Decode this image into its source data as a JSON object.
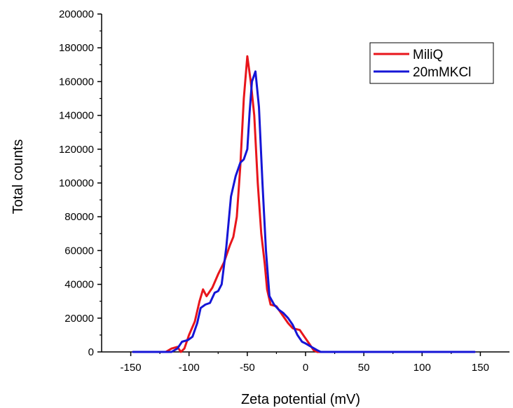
{
  "chart_data": {
    "type": "line",
    "title": "",
    "xlabel": "Zeta potential (mV)",
    "ylabel": "Total counts",
    "xlim": [
      -175,
      175
    ],
    "ylim": [
      0,
      200000
    ],
    "x_ticks": [
      -150,
      -100,
      -50,
      0,
      50,
      100,
      150
    ],
    "y_ticks": [
      0,
      20000,
      40000,
      60000,
      80000,
      100000,
      120000,
      140000,
      160000,
      180000,
      200000
    ],
    "grid": false,
    "legend_position": "top-right",
    "series": [
      {
        "name": "MiliQ",
        "color": "#e8151b",
        "points": [
          [
            -148,
            0
          ],
          [
            -120,
            0
          ],
          [
            -115,
            2000
          ],
          [
            -110,
            3000
          ],
          [
            -107,
            0
          ],
          [
            -104,
            2000
          ],
          [
            -100,
            10000
          ],
          [
            -95,
            18000
          ],
          [
            -91,
            30000
          ],
          [
            -88,
            37000
          ],
          [
            -85,
            33000
          ],
          [
            -80,
            38000
          ],
          [
            -75,
            46000
          ],
          [
            -70,
            53000
          ],
          [
            -65,
            63000
          ],
          [
            -62,
            68000
          ],
          [
            -59,
            80000
          ],
          [
            -56,
            110000
          ],
          [
            -53,
            150000
          ],
          [
            -50,
            175000
          ],
          [
            -47,
            160000
          ],
          [
            -44,
            140000
          ],
          [
            -41,
            100000
          ],
          [
            -38,
            70000
          ],
          [
            -35,
            52000
          ],
          [
            -33,
            37000
          ],
          [
            -30,
            28000
          ],
          [
            -25,
            27000
          ],
          [
            -20,
            22000
          ],
          [
            -15,
            17000
          ],
          [
            -11,
            14000
          ],
          [
            -5,
            13000
          ],
          [
            -1,
            9000
          ],
          [
            3,
            5000
          ],
          [
            7,
            1000
          ],
          [
            10,
            0
          ],
          [
            145,
            0
          ]
        ]
      },
      {
        "name": "20mMKCl",
        "color": "#1515d6",
        "points": [
          [
            -148,
            0
          ],
          [
            -115,
            0
          ],
          [
            -110,
            2000
          ],
          [
            -106,
            6000
          ],
          [
            -101,
            7000
          ],
          [
            -97,
            9000
          ],
          [
            -93,
            17000
          ],
          [
            -90,
            26000
          ],
          [
            -86,
            28000
          ],
          [
            -82,
            29000
          ],
          [
            -78,
            35000
          ],
          [
            -75,
            36000
          ],
          [
            -72,
            40000
          ],
          [
            -68,
            62000
          ],
          [
            -64,
            92000
          ],
          [
            -60,
            104000
          ],
          [
            -56,
            112000
          ],
          [
            -53,
            114000
          ],
          [
            -50,
            120000
          ],
          [
            -48,
            142000
          ],
          [
            -46,
            160000
          ],
          [
            -43,
            166000
          ],
          [
            -40,
            145000
          ],
          [
            -37,
            100000
          ],
          [
            -34,
            60000
          ],
          [
            -31,
            33000
          ],
          [
            -27,
            28000
          ],
          [
            -23,
            25000
          ],
          [
            -19,
            23000
          ],
          [
            -15,
            20000
          ],
          [
            -11,
            16000
          ],
          [
            -7,
            10000
          ],
          [
            -3,
            6000
          ],
          [
            0,
            5000
          ],
          [
            5,
            3000
          ],
          [
            10,
            1000
          ],
          [
            13,
            0
          ],
          [
            145,
            0
          ]
        ]
      }
    ]
  }
}
